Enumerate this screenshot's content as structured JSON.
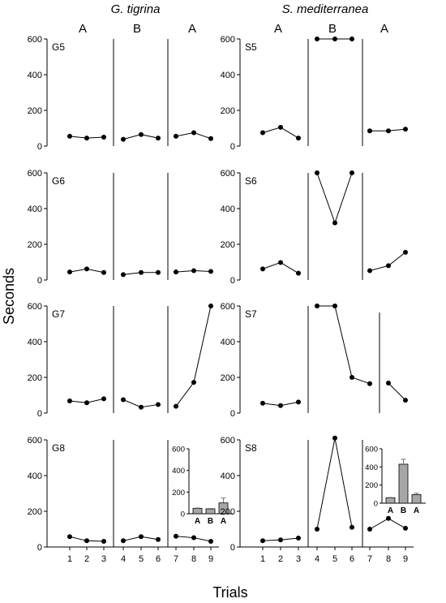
{
  "figure": {
    "species_titles": [
      "G. tigrina",
      "S. mediterranea"
    ],
    "phase_labels": [
      "A",
      "B",
      "A"
    ],
    "ylabel": "Seconds",
    "xlabel": "Trials"
  },
  "chart_data": [
    {
      "type": "line",
      "id": "G5",
      "title": "G5",
      "ylim": [
        0,
        600
      ],
      "yticks": [
        0,
        200,
        400,
        600
      ],
      "x": [
        1,
        2,
        3,
        4,
        5,
        6,
        7,
        8,
        9
      ],
      "values": [
        55,
        45,
        50,
        38,
        65,
        45,
        55,
        75,
        42
      ]
    },
    {
      "type": "line",
      "id": "S5",
      "title": "S5",
      "ylim": [
        0,
        600
      ],
      "yticks": [
        0,
        200,
        400,
        600
      ],
      "x": [
        1,
        2,
        3,
        4,
        5,
        6,
        7,
        8,
        9
      ],
      "values": [
        75,
        105,
        45,
        600,
        600,
        600,
        85,
        85,
        95
      ]
    },
    {
      "type": "line",
      "id": "G6",
      "title": "G6",
      "ylim": [
        0,
        600
      ],
      "yticks": [
        0,
        200,
        400,
        600
      ],
      "x": [
        1,
        2,
        3,
        4,
        5,
        6,
        7,
        8,
        9
      ],
      "values": [
        45,
        62,
        42,
        30,
        42,
        42,
        45,
        52,
        48
      ]
    },
    {
      "type": "line",
      "id": "S6",
      "title": "S6",
      "ylim": [
        0,
        600
      ],
      "yticks": [
        0,
        200,
        400,
        600
      ],
      "x": [
        1,
        2,
        3,
        4,
        5,
        6,
        7,
        8,
        9
      ],
      "values": [
        62,
        98,
        38,
        600,
        320,
        600,
        52,
        80,
        155
      ]
    },
    {
      "type": "line",
      "id": "G7",
      "title": "G7",
      "ylim": [
        0,
        600
      ],
      "yticks": [
        0,
        200,
        400,
        600
      ],
      "x": [
        1,
        2,
        3,
        4,
        5,
        6,
        7,
        8,
        9
      ],
      "values": [
        68,
        58,
        80,
        75,
        33,
        48,
        38,
        172,
        600
      ]
    },
    {
      "type": "line",
      "id": "S7",
      "title": "S7",
      "ylim": [
        0,
        600
      ],
      "yticks": [
        0,
        200,
        400,
        600
      ],
      "x": [
        1,
        2,
        3,
        4,
        5,
        6,
        7,
        8,
        9
      ],
      "values": [
        55,
        42,
        62,
        600,
        600,
        200,
        165,
        168,
        72
      ]
    },
    {
      "type": "line",
      "id": "G8",
      "title": "G8",
      "ylim": [
        0,
        600
      ],
      "yticks": [
        0,
        200,
        400,
        600
      ],
      "x": [
        1,
        2,
        3,
        4,
        5,
        6,
        7,
        8,
        9
      ],
      "values": [
        58,
        35,
        32,
        35,
        58,
        42,
        60,
        52,
        32
      ],
      "inset": {
        "type": "bar",
        "categories": [
          "A",
          "B",
          "A"
        ],
        "values": [
          50,
          45,
          100
        ],
        "errors": [
          3,
          3,
          45
        ],
        "ylim": [
          0,
          600
        ],
        "yticks": [
          0,
          200,
          400,
          600
        ]
      }
    },
    {
      "type": "line",
      "id": "S8",
      "title": "S8",
      "ylim": [
        0,
        600
      ],
      "yticks": [
        0,
        200,
        400,
        600
      ],
      "x": [
        1,
        2,
        3,
        4,
        5,
        6,
        7,
        8,
        9
      ],
      "values": [
        35,
        40,
        50,
        100,
        610,
        110,
        100,
        160,
        105
      ],
      "inset": {
        "type": "bar",
        "categories": [
          "A",
          "B",
          "A"
        ],
        "values": [
          60,
          430,
          95
        ],
        "errors": [
          3,
          55,
          15
        ],
        "ylim": [
          0,
          600
        ],
        "yticks": [
          0,
          200,
          400,
          600
        ]
      }
    }
  ],
  "x_tick_labels": [
    "1",
    "2",
    "3",
    "4",
    "5",
    "6",
    "7",
    "8",
    "9"
  ],
  "colors": {
    "line": "#000000",
    "bar": "#a6a6a6"
  }
}
